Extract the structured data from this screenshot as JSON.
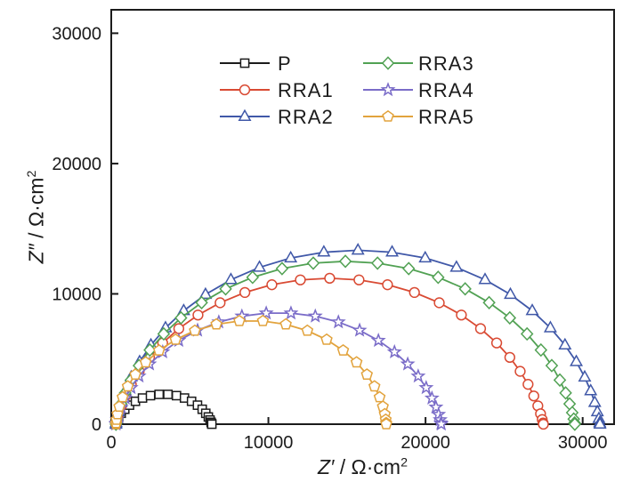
{
  "figure": {
    "background": "#ffffff",
    "text_color": "#1b1b1b",
    "axis_color": "#1b1b1b"
  },
  "chart_data": {
    "type": "scatter",
    "subtype": "nyquist-eis-line-marker",
    "title": "",
    "xlabel_parts": {
      "symbol": "Z′",
      "separator": " / ",
      "unit": "Ω·cm",
      "sup": "2"
    },
    "ylabel_parts": {
      "symbol": "Z″",
      "separator": " / ",
      "unit": "Ω·cm",
      "sup": "2"
    },
    "xlim": [
      0,
      32000
    ],
    "ylim": [
      0,
      31800
    ],
    "xticks": [
      0,
      10000,
      20000,
      30000
    ],
    "yticks": [
      0,
      10000,
      20000,
      30000
    ],
    "grid": false,
    "legend": {
      "position": "top-inside",
      "columns": 2,
      "order": [
        "P",
        "RRA1",
        "RRA2",
        "RRA3",
        "RRA4",
        "RRA5"
      ]
    },
    "series": [
      {
        "name": "P",
        "color": "#1b1b1b",
        "marker": "square",
        "x_start": 250,
        "x_end": 6400,
        "peak_x": 3325,
        "peak_y": 2300,
        "n_points": 24
      },
      {
        "name": "RRA1",
        "color": "#d94a33",
        "marker": "circle",
        "x_start": 300,
        "x_end": 27500,
        "peak_x": 13900,
        "peak_y": 11200,
        "n_points": 33
      },
      {
        "name": "RRA2",
        "color": "#4058a8",
        "marker": "triangle-up",
        "x_start": 300,
        "x_end": 31100,
        "peak_x": 15700,
        "peak_y": 13350,
        "n_points": 33
      },
      {
        "name": "RRA3",
        "color": "#51a153",
        "marker": "diamond",
        "x_start": 300,
        "x_end": 29500,
        "peak_x": 14900,
        "peak_y": 12500,
        "n_points": 33
      },
      {
        "name": "RRA4",
        "color": "#7a6cc8",
        "marker": "star",
        "x_start": 300,
        "x_end": 21000,
        "peak_x": 10650,
        "peak_y": 8550,
        "n_points": 30
      },
      {
        "name": "RRA5",
        "color": "#e2a33d",
        "marker": "pentagon",
        "x_start": 300,
        "x_end": 17500,
        "peak_x": 8900,
        "peak_y": 7950,
        "n_points": 28
      }
    ],
    "reading_notes": "Nyquist plot: each series is a depressed semicircular arc rising from x_start on the real axis to an apex at (peak_x, peak_y) and returning to zero at x_end; all values in Ω·cm²."
  }
}
